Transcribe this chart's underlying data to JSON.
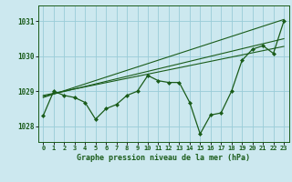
{
  "title": "Graphe pression niveau de la mer (hPa)",
  "background_color": "#cce8ef",
  "grid_color": "#99ccd8",
  "line_color": "#1a5c1a",
  "xlim": [
    -0.5,
    23.5
  ],
  "ylim": [
    1027.55,
    1031.45
  ],
  "yticks": [
    1028,
    1029,
    1030,
    1031
  ],
  "xticks": [
    0,
    1,
    2,
    3,
    4,
    5,
    6,
    7,
    8,
    9,
    10,
    11,
    12,
    13,
    14,
    15,
    16,
    17,
    18,
    19,
    20,
    21,
    22,
    23
  ],
  "main_data": {
    "x": [
      0,
      1,
      2,
      3,
      4,
      5,
      6,
      7,
      8,
      9,
      10,
      11,
      12,
      13,
      14,
      15,
      16,
      17,
      18,
      19,
      20,
      21,
      22,
      23
    ],
    "y": [
      1028.3,
      1029.0,
      1028.88,
      1028.82,
      1028.68,
      1028.2,
      1028.5,
      1028.62,
      1028.88,
      1029.0,
      1029.45,
      1029.3,
      1029.25,
      1029.25,
      1028.68,
      1027.78,
      1028.32,
      1028.38,
      1029.0,
      1029.88,
      1030.2,
      1030.3,
      1030.08,
      1031.0
    ]
  },
  "trend_line1": {
    "x": [
      0,
      23
    ],
    "y": [
      1028.88,
      1030.28
    ]
  },
  "trend_line2": {
    "x": [
      0,
      23
    ],
    "y": [
      1028.85,
      1030.5
    ]
  },
  "trend_line3": {
    "x": [
      0,
      23
    ],
    "y": [
      1028.82,
      1031.05
    ]
  }
}
